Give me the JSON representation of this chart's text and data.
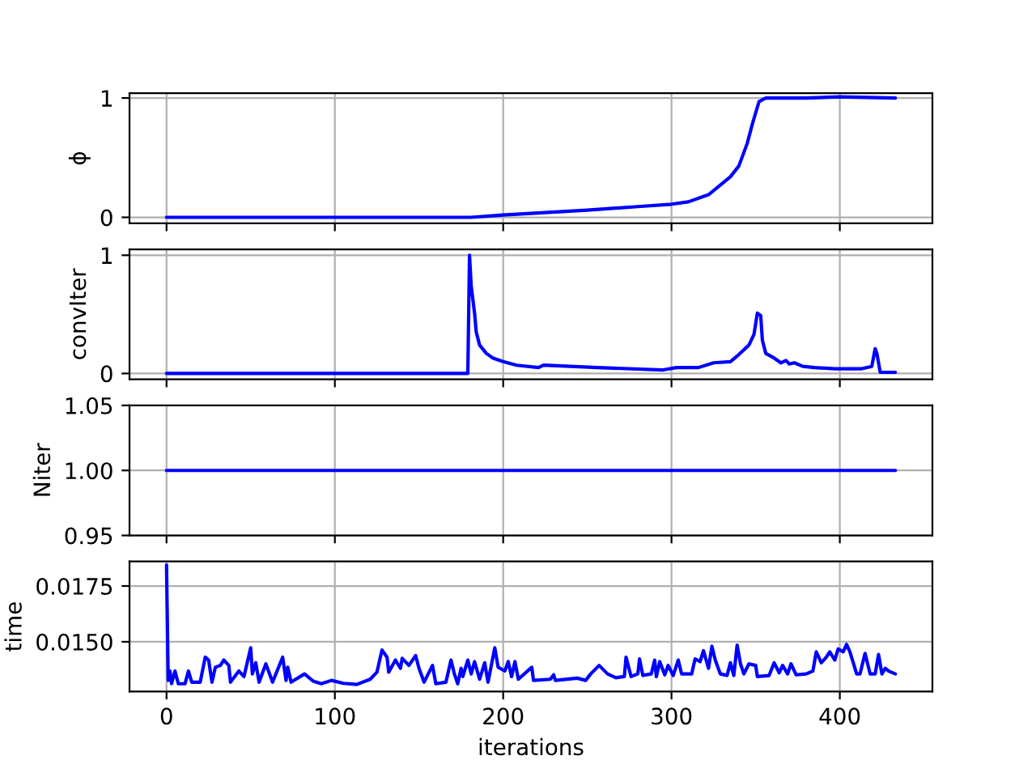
{
  "chart_data": [
    {
      "type": "line",
      "ylabel": "ϕ",
      "grid": true,
      "tick_labels": "y",
      "xlim": [
        -22,
        455
      ],
      "xticks": [
        0,
        100,
        200,
        300,
        400
      ],
      "ylim": [
        -0.05,
        1.04
      ],
      "yticks": [
        0,
        1
      ],
      "series": [
        {
          "color": "#0000ff",
          "x": [
            0,
            181,
            200,
            250,
            280,
            300,
            310,
            322,
            335,
            340,
            345,
            348,
            352,
            356,
            380,
            400,
            433
          ],
          "values": [
            0,
            0,
            0.02,
            0.06,
            0.09,
            0.11,
            0.13,
            0.19,
            0.34,
            0.43,
            0.62,
            0.78,
            0.97,
            1.0,
            1.0,
            1.01,
            1.0
          ]
        }
      ]
    },
    {
      "type": "line",
      "ylabel": "convIter",
      "grid": true,
      "tick_labels": "y",
      "xlim": [
        -22,
        455
      ],
      "xticks": [
        0,
        100,
        200,
        300,
        400
      ],
      "ylim": [
        -0.05,
        1.05
      ],
      "yticks": [
        0,
        1
      ],
      "series": [
        {
          "color": "#0000ff",
          "x": [
            0,
            179,
            180,
            181,
            183,
            184,
            186,
            190,
            194,
            200,
            208,
            221,
            224,
            256,
            295,
            303,
            316,
            325,
            335,
            340,
            346,
            349,
            351,
            353,
            354,
            356,
            361,
            365,
            368,
            370,
            373,
            378,
            385,
            397,
            413,
            419,
            421,
            422,
            424,
            433
          ],
          "values": [
            0,
            0,
            1.0,
            0.74,
            0.51,
            0.35,
            0.24,
            0.17,
            0.13,
            0.1,
            0.07,
            0.05,
            0.07,
            0.05,
            0.03,
            0.05,
            0.05,
            0.09,
            0.1,
            0.16,
            0.24,
            0.33,
            0.51,
            0.49,
            0.28,
            0.17,
            0.13,
            0.09,
            0.11,
            0.08,
            0.09,
            0.06,
            0.05,
            0.04,
            0.04,
            0.06,
            0.21,
            0.17,
            0.01,
            0.01
          ]
        }
      ]
    },
    {
      "type": "line",
      "ylabel": "Niter",
      "grid": true,
      "tick_labels": "y",
      "xlim": [
        -22,
        455
      ],
      "xticks": [
        0,
        100,
        200,
        300,
        400
      ],
      "ylim": [
        0.95,
        1.05
      ],
      "yticks": [
        {
          "value": 0.95,
          "label": "0.95"
        },
        {
          "value": 1.0,
          "label": "1.00"
        },
        {
          "value": 1.05,
          "label": "1.05"
        }
      ],
      "series": [
        {
          "color": "#0000ff",
          "x": [
            0,
            433
          ],
          "values": [
            1.0,
            1.0
          ]
        }
      ]
    },
    {
      "type": "line",
      "ylabel": "time",
      "xlabel": "iterations",
      "grid": true,
      "xlim": [
        -22,
        455
      ],
      "xticks": [
        0,
        100,
        200,
        300,
        400
      ],
      "ylim": [
        0.01277,
        0.0186
      ],
      "yticks": [
        {
          "value": 0.015,
          "label": "0.0150"
        },
        {
          "value": 0.0175,
          "label": "0.0175"
        }
      ],
      "series": [
        {
          "color": "#0000ff",
          "x": [
            0,
            1,
            2,
            3,
            5,
            7,
            11,
            13,
            15,
            20,
            23,
            25,
            27,
            29,
            32,
            34,
            37,
            38,
            43,
            46,
            50,
            51,
            53,
            55,
            59,
            63,
            69,
            71,
            72,
            74,
            82,
            87,
            92,
            98,
            105,
            113,
            121,
            125,
            128,
            131,
            132,
            136,
            139,
            140,
            144,
            148,
            150,
            153,
            158,
            160,
            166,
            169,
            171,
            173,
            175,
            176,
            179,
            181,
            183,
            186,
            189,
            191,
            195,
            197,
            201,
            203,
            205,
            207,
            209,
            217,
            218,
            228,
            230,
            231,
            244,
            249,
            252,
            257,
            262,
            267,
            272,
            273,
            276,
            280,
            281,
            283,
            288,
            290,
            291,
            293,
            296,
            298,
            301,
            304,
            306,
            312,
            314,
            317,
            319,
            322,
            324,
            326,
            329,
            333,
            335,
            337,
            339,
            341,
            343,
            346,
            350,
            351,
            358,
            361,
            364,
            366,
            369,
            371,
            374,
            380,
            384,
            386,
            389,
            392,
            394,
            397,
            399,
            402,
            404,
            406,
            410,
            412,
            415,
            418,
            421,
            423,
            425,
            427,
            429,
            433
          ],
          "values": [
            0.01844,
            0.01327,
            0.01369,
            0.01312,
            0.01369,
            0.01312,
            0.01312,
            0.01369,
            0.01319,
            0.01319,
            0.01431,
            0.01418,
            0.01319,
            0.01386,
            0.01394,
            0.01418,
            0.01394,
            0.01319,
            0.01369,
            0.01344,
            0.01473,
            0.01356,
            0.01406,
            0.01319,
            0.01401,
            0.01319,
            0.01431,
            0.01327,
            0.01386,
            0.01319,
            0.01356,
            0.01324,
            0.01312,
            0.01327,
            0.01314,
            0.01309,
            0.01332,
            0.01364,
            0.01463,
            0.01431,
            0.01364,
            0.01418,
            0.01381,
            0.01426,
            0.01394,
            0.01438,
            0.01381,
            0.01319,
            0.01394,
            0.01312,
            0.01319,
            0.01418,
            0.01356,
            0.01312,
            0.01381,
            0.01344,
            0.01418,
            0.01356,
            0.01411,
            0.01332,
            0.01406,
            0.01319,
            0.01473,
            0.01386,
            0.01369,
            0.01411,
            0.01344,
            0.01411,
            0.01332,
            0.01386,
            0.01327,
            0.01332,
            0.01352,
            0.01327,
            0.01337,
            0.01327,
            0.01356,
            0.01394,
            0.01356,
            0.01339,
            0.01344,
            0.01431,
            0.01344,
            0.01356,
            0.01423,
            0.01349,
            0.01356,
            0.01418,
            0.01344,
            0.01411,
            0.01352,
            0.01394,
            0.01349,
            0.01418,
            0.01356,
            0.01356,
            0.01423,
            0.01411,
            0.0146,
            0.01381,
            0.0148,
            0.01418,
            0.01356,
            0.01349,
            0.01406,
            0.01349,
            0.01485,
            0.01401,
            0.01356,
            0.01401,
            0.01394,
            0.01344,
            0.01349,
            0.01406,
            0.01361,
            0.01394,
            0.01356,
            0.01401,
            0.01352,
            0.01356,
            0.01369,
            0.01455,
            0.01406,
            0.01431,
            0.01455,
            0.01418,
            0.01468,
            0.01455,
            0.01488,
            0.01455,
            0.01356,
            0.01356,
            0.01448,
            0.01356,
            0.01356,
            0.01443,
            0.01356,
            0.01381,
            0.01369,
            0.01356
          ]
        }
      ]
    }
  ]
}
